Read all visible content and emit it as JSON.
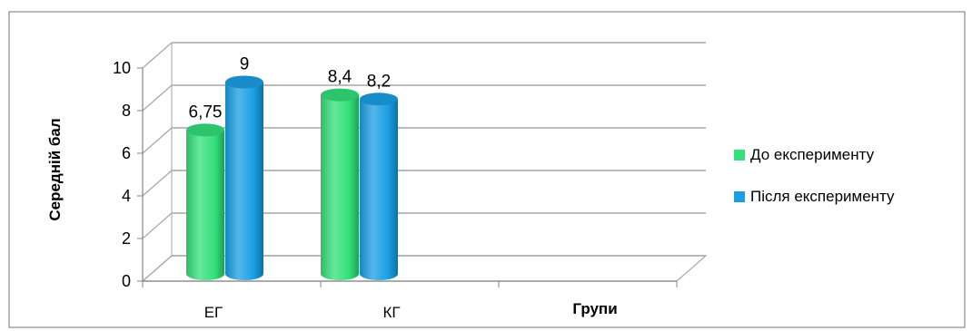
{
  "chart_data": {
    "type": "bar",
    "categories": [
      "ЕГ",
      "КГ",
      ""
    ],
    "series": [
      {
        "name": "До експерименту",
        "values": [
          6.75,
          8.4,
          null
        ],
        "labels": [
          "6,75",
          "8,4",
          ""
        ]
      },
      {
        "name": "Після експерименту",
        "values": [
          9,
          8.2,
          null
        ],
        "labels": [
          "9",
          "8,2",
          ""
        ]
      }
    ],
    "xlabel": "Групи",
    "ylabel": "Середній бал",
    "ylim": [
      0,
      10
    ],
    "yticks": [
      "0",
      "2",
      "4",
      "6",
      "8",
      "10"
    ],
    "grid": true,
    "legend_position": "right",
    "style": "3d-cylinder"
  },
  "colors": {
    "series_1": "#33e07a",
    "series_2": "#1a9fe4",
    "gridline": "#a6a6a6",
    "border": "#8c8c8c"
  }
}
